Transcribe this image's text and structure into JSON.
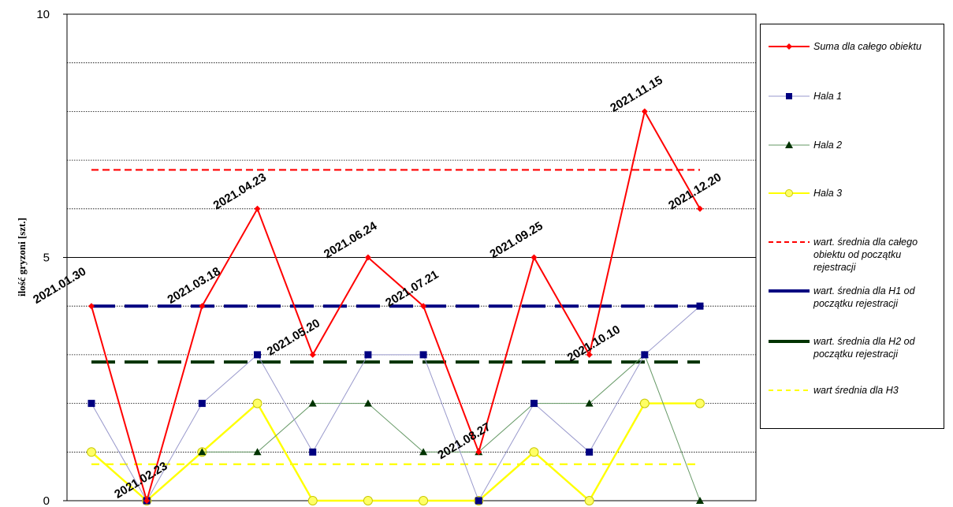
{
  "chart_data": {
    "type": "line",
    "ylabel": "ilość gryzoni [szt.]",
    "ylim": [
      0,
      10
    ],
    "yticks": [
      "0",
      "5",
      "10"
    ],
    "grid": "horizontal dotted lines every 1 unit",
    "legend_position": "right",
    "x": [
      "2021.01.30",
      "2021.02.23",
      "2021.03.18",
      "2021.04.23",
      "2021.05.20",
      "2021.06.24",
      "2021.07.21",
      "2021.08.27",
      "2021.09.25",
      "2021.10.10",
      "2021.11.15",
      "2021.12.20"
    ],
    "series": [
      {
        "name": "Suma dla całego obiektu",
        "values": [
          4,
          0,
          4,
          6,
          3,
          5,
          4,
          1,
          5,
          3,
          8,
          6
        ],
        "color": "#ff0000",
        "marker": "diamond"
      },
      {
        "name": "Hala 1",
        "values": [
          2,
          0,
          2,
          3,
          1,
          3,
          3,
          0,
          2,
          1,
          3,
          4
        ],
        "color": "#9999cc",
        "marker_color": "#000080",
        "marker": "square"
      },
      {
        "name": "Hala 2",
        "values": [
          null,
          null,
          1,
          1,
          2,
          2,
          1,
          1,
          2,
          2,
          3,
          0
        ],
        "color": "#669966",
        "marker_color": "#003300",
        "marker": "triangle"
      },
      {
        "name": "Hala 3",
        "values": [
          1,
          0,
          1,
          2,
          0,
          0,
          0,
          0,
          1,
          0,
          2,
          2
        ],
        "color": "#ffff00",
        "marker": "circle"
      }
    ],
    "reference_lines": [
      {
        "name": "wart. średnia dla całego obiektu od początku rejestracji",
        "value": 6.8,
        "color": "#ff0000",
        "style": "short dash"
      },
      {
        "name": "wart. średnia dla H1 od początku rejestracji",
        "value": 4,
        "color": "#000080",
        "style": "long dash"
      },
      {
        "name": "wart. średnia dla H2 od początku rejestracji",
        "value": 2.85,
        "color": "#003300",
        "style": "long dash"
      },
      {
        "name": "wart średnia dla H3",
        "value": 0.75,
        "color": "#ffff00",
        "style": "dash"
      }
    ],
    "point_labels": [
      {
        "text": "2021.01.30",
        "series": "Suma dla całego obiektu",
        "index": 0
      },
      {
        "text": "2021.02.23",
        "series": "Suma dla całego obiektu",
        "index": 1
      },
      {
        "text": "2021.03.18",
        "series": "Suma dla całego obiektu",
        "index": 2
      },
      {
        "text": "2021.04.23",
        "series": "Suma dla całego obiektu",
        "index": 3
      },
      {
        "text": "2021.05.20",
        "series": "Suma dla całego obiektu",
        "index": 4
      },
      {
        "text": "2021.06.24",
        "series": "Suma dla całego obiektu",
        "index": 5
      },
      {
        "text": "2021.07.21",
        "series": "Suma dla całego obiektu",
        "index": 6
      },
      {
        "text": "2021.08.27",
        "series": "Suma dla całego obiektu",
        "index": 7
      },
      {
        "text": "2021.09.25",
        "series": "Suma dla całego obiektu",
        "index": 8
      },
      {
        "text": "2021.10.10",
        "series": "Suma dla całego obiektu",
        "index": 9
      },
      {
        "text": "2021.11.15",
        "series": "Suma dla całego obiektu",
        "index": 10
      },
      {
        "text": "2021.12.20",
        "series": "Suma dla całego obiektu",
        "index": 11
      }
    ]
  },
  "legend": {
    "items": [
      {
        "label": "Suma dla całego obiektu"
      },
      {
        "label": "Hala 1"
      },
      {
        "label": "Hala 2"
      },
      {
        "label": "Hala 3"
      },
      {
        "label": "wart. średnia dla całego obiektu od początku rejestracji"
      },
      {
        "label": "wart. średnia dla H1 od początku rejestracji"
      },
      {
        "label": "wart. średnia dla H2 od początku rejestracji"
      },
      {
        "label": "wart średnia dla H3"
      }
    ]
  }
}
